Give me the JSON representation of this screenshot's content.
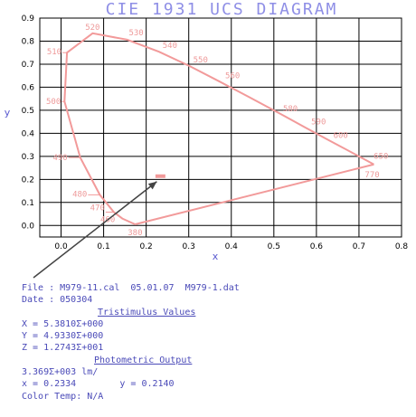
{
  "chart_data": {
    "type": "line",
    "title": "CIE  1931  UCS  DIAGRAM",
    "xlabel": "x",
    "ylabel": "y",
    "xlim": [
      -0.05,
      0.8
    ],
    "ylim": [
      -0.05,
      0.9
    ],
    "x_ticks": [
      "0.0",
      "0.1",
      "0.2",
      "0.3",
      "0.4",
      "0.5",
      "0.6",
      "0.7",
      "0.8"
    ],
    "x_tick_values": [
      0,
      0.1,
      0.2,
      0.3,
      0.4,
      0.5,
      0.6,
      0.7,
      0.8
    ],
    "y_ticks": [
      "0.0",
      "0.1",
      "0.2",
      "0.3",
      "0.4",
      "0.5",
      "0.6",
      "0.7",
      "0.8",
      "0.9"
    ],
    "y_tick_values": [
      0,
      0.1,
      0.2,
      0.3,
      0.4,
      0.5,
      0.6,
      0.7,
      0.8,
      0.9
    ],
    "grid": true,
    "curve_color": "#f29a9a",
    "arrow_color": "#444444",
    "spectral_locus": [
      {
        "x": 0.174,
        "y": 0.005
      },
      {
        "x": 0.144,
        "y": 0.03
      },
      {
        "x": 0.124,
        "y": 0.058
      },
      {
        "x": 0.091,
        "y": 0.133
      },
      {
        "x": 0.045,
        "y": 0.295
      },
      {
        "x": 0.008,
        "y": 0.538
      },
      {
        "x": 0.014,
        "y": 0.75
      },
      {
        "x": 0.074,
        "y": 0.834
      },
      {
        "x": 0.155,
        "y": 0.806
      },
      {
        "x": 0.23,
        "y": 0.754
      },
      {
        "x": 0.302,
        "y": 0.692
      },
      {
        "x": 0.373,
        "y": 0.624
      },
      {
        "x": 0.444,
        "y": 0.555
      },
      {
        "x": 0.513,
        "y": 0.487
      },
      {
        "x": 0.575,
        "y": 0.424
      },
      {
        "x": 0.627,
        "y": 0.372
      },
      {
        "x": 0.666,
        "y": 0.334
      },
      {
        "x": 0.735,
        "y": 0.265
      }
    ],
    "wavelength_labels": [
      {
        "text": "380",
        "x": 0.174,
        "y": 0.005
      },
      {
        "text": "460",
        "x": 0.144,
        "y": 0.03
      },
      {
        "text": "470",
        "x": 0.124,
        "y": 0.058
      },
      {
        "text": "480",
        "x": 0.091,
        "y": 0.133
      },
      {
        "text": "490",
        "x": 0.045,
        "y": 0.295
      },
      {
        "text": "500",
        "x": 0.008,
        "y": 0.538
      },
      {
        "text": "510",
        "x": 0.014,
        "y": 0.75
      },
      {
        "text": "520",
        "x": 0.074,
        "y": 0.834
      },
      {
        "text": "530",
        "x": 0.155,
        "y": 0.806
      },
      {
        "text": "540",
        "x": 0.23,
        "y": 0.754
      },
      {
        "text": "550",
        "x": 0.302,
        "y": 0.692
      },
      {
        "text": "560",
        "x": 0.373,
        "y": 0.624
      },
      {
        "text": "580",
        "x": 0.513,
        "y": 0.487
      },
      {
        "text": "590",
        "x": 0.575,
        "y": 0.424
      },
      {
        "text": "600",
        "x": 0.627,
        "y": 0.372
      },
      {
        "text": "650",
        "x": 0.726,
        "y": 0.274
      },
      {
        "text": "770",
        "x": 0.735,
        "y": 0.265
      }
    ],
    "measured_point": {
      "x": 0.2334,
      "y": 0.214
    }
  },
  "info": {
    "file_line": "File : M979-11.cal  05.01.07  M979-1.dat",
    "date_line": "Date : 050304",
    "tristimulus_heading": "Tristimulus Values",
    "x_value": "X = 5.3810Σ+000",
    "y_value": "Y = 4.9330Σ+000",
    "z_value": "Z = 1.2743Σ+001",
    "photometric_heading": "Photometric Output",
    "lumens": "3.369Σ+003 lm/",
    "xy_coords": "x = 0.2334        y = 0.2140",
    "color_temp": "Color Temp: N/A"
  }
}
